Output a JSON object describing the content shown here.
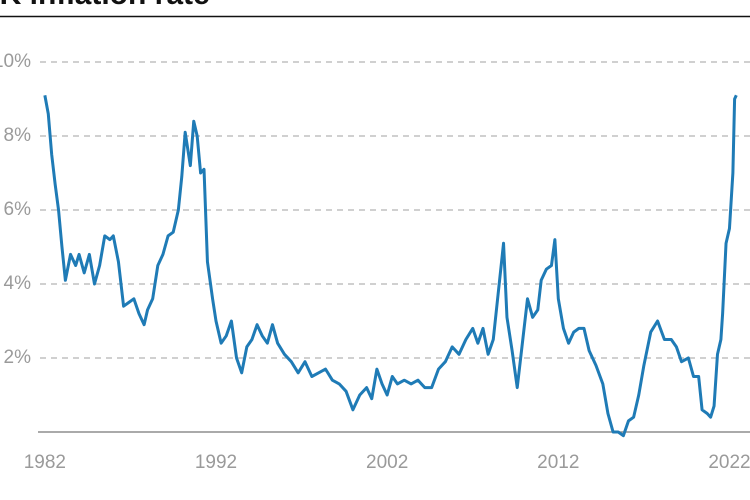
{
  "chart_data": {
    "type": "line",
    "title": "UK inflation rate",
    "xlim": [
      1981.6,
      2023.2
    ],
    "xticks": [
      1982,
      1992,
      2002,
      2012,
      2022
    ],
    "ylim": [
      0,
      10
    ],
    "yticks": [
      {
        "value": 2,
        "label": "2%"
      },
      {
        "value": 4,
        "label": "4%"
      },
      {
        "value": 6,
        "label": "6%"
      },
      {
        "value": 8,
        "label": "8%"
      },
      {
        "value": 10,
        "label": "10%"
      }
    ],
    "grid": true,
    "series": [
      {
        "color": "#1f7bb6",
        "x": [
          1982.0,
          1982.2,
          1982.4,
          1982.6,
          1982.8,
          1983.0,
          1983.2,
          1983.5,
          1983.8,
          1984.0,
          1984.3,
          1984.6,
          1984.9,
          1985.2,
          1985.5,
          1985.8,
          1986.0,
          1986.3,
          1986.6,
          1986.9,
          1987.2,
          1987.5,
          1987.8,
          1988.0,
          1988.3,
          1988.6,
          1988.9,
          1989.2,
          1989.5,
          1989.8,
          1990.0,
          1990.2,
          1990.5,
          1990.7,
          1990.9,
          1991.1,
          1991.3,
          1991.5,
          1991.8,
          1992.0,
          1992.3,
          1992.6,
          1992.9,
          1993.2,
          1993.5,
          1993.8,
          1994.1,
          1994.4,
          1994.7,
          1995.0,
          1995.3,
          1995.6,
          1996.0,
          1996.4,
          1996.8,
          1997.2,
          1997.6,
          1998.0,
          1998.4,
          1998.8,
          1999.2,
          1999.6,
          2000.0,
          2000.4,
          2000.8,
          2001.1,
          2001.4,
          2001.7,
          2002.0,
          2002.3,
          2002.6,
          2003.0,
          2003.4,
          2003.8,
          2004.2,
          2004.6,
          2005.0,
          2005.4,
          2005.8,
          2006.2,
          2006.6,
          2007.0,
          2007.3,
          2007.6,
          2007.9,
          2008.2,
          2008.5,
          2008.8,
          2009.0,
          2009.3,
          2009.6,
          2009.9,
          2010.2,
          2010.5,
          2010.8,
          2011.0,
          2011.3,
          2011.6,
          2011.8,
          2012.0,
          2012.3,
          2012.6,
          2012.9,
          2013.2,
          2013.5,
          2013.8,
          2014.2,
          2014.6,
          2014.9,
          2015.2,
          2015.5,
          2015.8,
          2016.1,
          2016.4,
          2016.7,
          2017.0,
          2017.4,
          2017.8,
          2018.2,
          2018.6,
          2018.9,
          2019.2,
          2019.6,
          2019.9,
          2020.2,
          2020.4,
          2020.7,
          2020.9,
          2021.1,
          2021.3,
          2021.5,
          2021.6,
          2021.8,
          2022.0,
          2022.2,
          2022.3,
          2022.4
        ],
        "values": [
          9.1,
          8.6,
          7.5,
          6.7,
          6.0,
          5.0,
          4.1,
          4.8,
          4.5,
          4.8,
          4.3,
          4.8,
          4.0,
          4.5,
          5.3,
          5.2,
          5.3,
          4.6,
          3.4,
          3.5,
          3.6,
          3.2,
          2.9,
          3.3,
          3.6,
          4.5,
          4.8,
          5.3,
          5.4,
          6.0,
          6.9,
          8.1,
          7.2,
          8.4,
          8.0,
          7.0,
          7.1,
          4.6,
          3.6,
          3.0,
          2.4,
          2.6,
          3.0,
          2.0,
          1.6,
          2.3,
          2.5,
          2.9,
          2.6,
          2.4,
          2.9,
          2.4,
          2.1,
          1.9,
          1.6,
          1.9,
          1.5,
          1.6,
          1.7,
          1.4,
          1.3,
          1.1,
          0.6,
          1.0,
          1.2,
          0.9,
          1.7,
          1.3,
          1.0,
          1.5,
          1.3,
          1.4,
          1.3,
          1.4,
          1.2,
          1.2,
          1.7,
          1.9,
          2.3,
          2.1,
          2.5,
          2.8,
          2.4,
          2.8,
          2.1,
          2.5,
          3.8,
          5.1,
          3.1,
          2.2,
          1.2,
          2.4,
          3.6,
          3.1,
          3.3,
          4.1,
          4.4,
          4.5,
          5.2,
          3.6,
          2.8,
          2.4,
          2.7,
          2.8,
          2.8,
          2.2,
          1.8,
          1.3,
          0.5,
          0.0,
          0.0,
          -0.1,
          0.3,
          0.4,
          1.0,
          1.8,
          2.7,
          3.0,
          2.5,
          2.5,
          2.3,
          1.9,
          2.0,
          1.5,
          1.5,
          0.6,
          0.5,
          0.4,
          0.7,
          2.1,
          2.5,
          3.2,
          5.1,
          5.5,
          7.0,
          9.0,
          9.1
        ]
      }
    ]
  }
}
